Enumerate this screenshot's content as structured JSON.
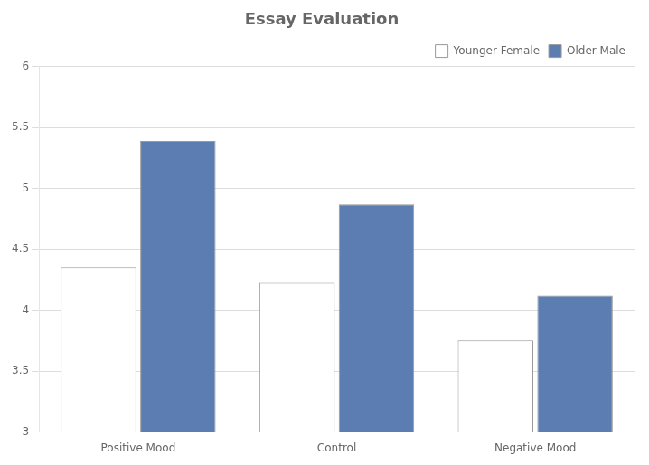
{
  "chart_data": {
    "type": "bar",
    "title": "Essay Evaluation",
    "categories": [
      "Positive Mood",
      "Control",
      "Negative Mood"
    ],
    "series": [
      {
        "name": "Younger Female",
        "color": "#ffffff",
        "values": [
          4.35,
          4.23,
          3.75
        ]
      },
      {
        "name": "Older Male",
        "color": "#5b7db1",
        "values": [
          5.39,
          4.87,
          4.12
        ]
      }
    ],
    "ylim": [
      3.0,
      6.0
    ],
    "yticks": [
      3.0,
      3.5,
      4.0,
      4.5,
      5.0,
      5.5,
      6.0
    ],
    "grid": true,
    "legend": "upper right"
  }
}
